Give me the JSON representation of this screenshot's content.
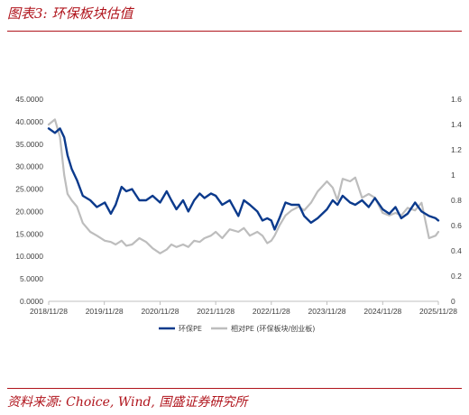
{
  "header": {
    "title": "图表3:  环保板块估值"
  },
  "footer": {
    "source": "资料来源:  Choice,  Wind,  国盛证券研究所"
  },
  "colors": {
    "accent": "#b0141c",
    "series_pe": "#0b3a8c",
    "series_rel": "#bdbdbd",
    "axis": "#bfbfbf"
  },
  "chart_data": {
    "type": "line",
    "title": "",
    "xlabel": "",
    "ylabel": "",
    "x_ticks": [
      "2018/11/28",
      "2019/11/28",
      "2020/11/28",
      "2021/11/28",
      "2022/11/28",
      "2023/11/28",
      "2024/11/28",
      "2025/11/28"
    ],
    "x_range": [
      "2018/11/28",
      "2025/11/28"
    ],
    "y_left": {
      "range": [
        0,
        45
      ],
      "ticks": [
        "0.0000",
        "5.0000",
        "10.0000",
        "15.0000",
        "20.0000",
        "25.0000",
        "30.0000",
        "35.0000",
        "40.0000",
        "45.0000"
      ]
    },
    "y_right": {
      "range": [
        0,
        1.6
      ],
      "ticks": [
        "0",
        "0.2",
        "0.4",
        "0.6",
        "0.8",
        "1",
        "1.2",
        "1.4",
        "1.6"
      ]
    },
    "grid": false,
    "legend_position": "bottom",
    "series": [
      {
        "name": "环保PE",
        "axis": "left",
        "dates": [
          "2018/11/28",
          "2019/01/08",
          "2019/02/10",
          "2019/03/10",
          "2019/04/01",
          "2019/04/28",
          "2019/06/01",
          "2019/07/10",
          "2019/08/28",
          "2019/10/10",
          "2019/12/01",
          "2020/01/10",
          "2020/02/10",
          "2020/03/20",
          "2020/04/20",
          "2020/05/28",
          "2020/07/15",
          "2020/08/28",
          "2020/10/10",
          "2020/11/28",
          "2021/01/10",
          "2021/02/10",
          "2021/03/15",
          "2021/04/28",
          "2021/06/01",
          "2021/07/10",
          "2021/08/15",
          "2021/09/15",
          "2021/10/28",
          "2021/11/28",
          "2022/01/10",
          "2022/02/28",
          "2022/04/26",
          "2022/06/01",
          "2022/07/10",
          "2022/08/28",
          "2022/10/01",
          "2022/11/01",
          "2022/11/28",
          "2022/12/20",
          "2023/01/20",
          "2023/03/01",
          "2023/04/10",
          "2023/05/28",
          "2023/07/01",
          "2023/08/15",
          "2023/09/28",
          "2023/11/28",
          "2024/01/05",
          "2024/02/05",
          "2024/03/10",
          "2024/04/28",
          "2024/06/01",
          "2024/07/15",
          "2024/08/28",
          "2024/10/08",
          "2024/11/28",
          "2025/01/10",
          "2025/02/20",
          "2025/03/30",
          "2025/05/10",
          "2025/06/28",
          "2025/08/10",
          "2025/09/28",
          "2025/11/10",
          "2025/11/28"
        ],
        "values": [
          38.5,
          37.5,
          38.5,
          36.5,
          32.5,
          29.5,
          27.0,
          23.5,
          22.5,
          21.0,
          22.0,
          19.5,
          21.5,
          25.5,
          24.5,
          25.0,
          22.5,
          22.5,
          23.5,
          22.0,
          24.5,
          22.5,
          20.5,
          22.5,
          20.0,
          22.5,
          24.0,
          23.0,
          24.0,
          23.5,
          21.5,
          22.5,
          19.0,
          22.5,
          21.5,
          20.0,
          18.0,
          18.5,
          18.0,
          16.0,
          18.5,
          22.0,
          21.5,
          21.5,
          19.0,
          17.5,
          18.5,
          20.5,
          22.5,
          21.5,
          23.5,
          22.0,
          21.5,
          22.5,
          21.0,
          23.0,
          20.5,
          19.5,
          21.0,
          18.5,
          19.5,
          22.0,
          20.0,
          19.0,
          18.5,
          18.0
        ]
      },
      {
        "name": "相对PE (环保板块/创业板)",
        "axis": "right",
        "dates": [
          "2018/11/28",
          "2019/01/08",
          "2019/02/10",
          "2019/03/10",
          "2019/04/01",
          "2019/04/28",
          "2019/06/01",
          "2019/07/10",
          "2019/08/28",
          "2019/10/10",
          "2019/12/01",
          "2020/01/10",
          "2020/02/10",
          "2020/03/20",
          "2020/04/20",
          "2020/05/28",
          "2020/07/15",
          "2020/08/28",
          "2020/10/10",
          "2020/11/28",
          "2021/01/10",
          "2021/02/10",
          "2021/03/15",
          "2021/04/28",
          "2021/06/01",
          "2021/07/10",
          "2021/08/15",
          "2021/09/15",
          "2021/10/28",
          "2021/11/28",
          "2022/01/10",
          "2022/02/28",
          "2022/04/26",
          "2022/06/01",
          "2022/07/10",
          "2022/08/28",
          "2022/10/01",
          "2022/11/01",
          "2022/11/28",
          "2022/12/20",
          "2023/01/20",
          "2023/03/01",
          "2023/04/10",
          "2023/05/28",
          "2023/07/01",
          "2023/08/15",
          "2023/09/28",
          "2023/11/28",
          "2024/01/05",
          "2024/02/05",
          "2024/03/10",
          "2024/04/28",
          "2024/06/01",
          "2024/07/15",
          "2024/08/28",
          "2024/10/08",
          "2024/11/28",
          "2025/01/10",
          "2025/02/20",
          "2025/03/30",
          "2025/05/10",
          "2025/06/28",
          "2025/08/10",
          "2025/09/28",
          "2025/11/10",
          "2025/11/28"
        ],
        "values": [
          1.4,
          1.44,
          1.3,
          1.0,
          0.85,
          0.8,
          0.75,
          0.62,
          0.55,
          0.52,
          0.48,
          0.47,
          0.45,
          0.48,
          0.44,
          0.45,
          0.5,
          0.47,
          0.42,
          0.38,
          0.41,
          0.45,
          0.43,
          0.45,
          0.43,
          0.48,
          0.47,
          0.5,
          0.52,
          0.55,
          0.5,
          0.57,
          0.55,
          0.58,
          0.52,
          0.55,
          0.52,
          0.46,
          0.48,
          0.52,
          0.6,
          0.68,
          0.72,
          0.75,
          0.72,
          0.78,
          0.87,
          0.95,
          0.9,
          0.8,
          0.97,
          0.95,
          0.98,
          0.82,
          0.85,
          0.82,
          0.7,
          0.68,
          0.7,
          0.68,
          0.74,
          0.72,
          0.78,
          0.5,
          0.52,
          0.55
        ]
      }
    ]
  }
}
